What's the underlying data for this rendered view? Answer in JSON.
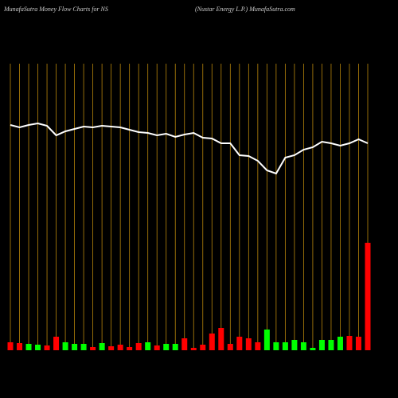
{
  "chart_data": {
    "type": "money-flow",
    "title": "MunafaSutra  Money Flow  Charts for NS",
    "subtitle": "(Nustar Energy L.P.) MunafaSutra.com",
    "ylim": [
      0,
      360
    ],
    "grid_color": "#b8860b",
    "line_color": "#ffffff",
    "line": [
      283,
      280,
      283,
      285,
      282,
      270,
      275,
      278,
      281,
      280,
      282,
      281,
      280,
      277,
      274,
      273,
      270,
      272,
      268,
      271,
      273,
      267,
      266,
      260,
      260,
      245,
      244,
      238,
      226,
      222,
      242,
      245,
      252,
      255,
      262,
      260,
      257,
      260,
      265,
      260
    ],
    "values": [
      10,
      9,
      8,
      7,
      6,
      17,
      10,
      8,
      8,
      4,
      9,
      5,
      7,
      4,
      9,
      10,
      6,
      8,
      8,
      15,
      3,
      7,
      21,
      28,
      8,
      17,
      15,
      10,
      26,
      10,
      10,
      13,
      10,
      3,
      13,
      13,
      17,
      18,
      17,
      135
    ],
    "colors": [
      "#ff0000",
      "#ff0000",
      "#00ff00",
      "#00ff00",
      "#ff0000",
      "#ff0000",
      "#00ff00",
      "#00ff00",
      "#00ff00",
      "#ff0000",
      "#00ff00",
      "#ff0000",
      "#ff0000",
      "#ff0000",
      "#ff0000",
      "#00ff00",
      "#ff0000",
      "#00ff00",
      "#00ff00",
      "#ff0000",
      "#ff0000",
      "#ff0000",
      "#ff0000",
      "#ff0000",
      "#ff0000",
      "#ff0000",
      "#ff0000",
      "#ff0000",
      "#00ff00",
      "#00ff00",
      "#00ff00",
      "#00ff00",
      "#00ff00",
      "#00ff00",
      "#00ff00",
      "#00ff00",
      "#00ff00",
      "#ff0000",
      "#ff0000",
      "#ff0000"
    ]
  }
}
